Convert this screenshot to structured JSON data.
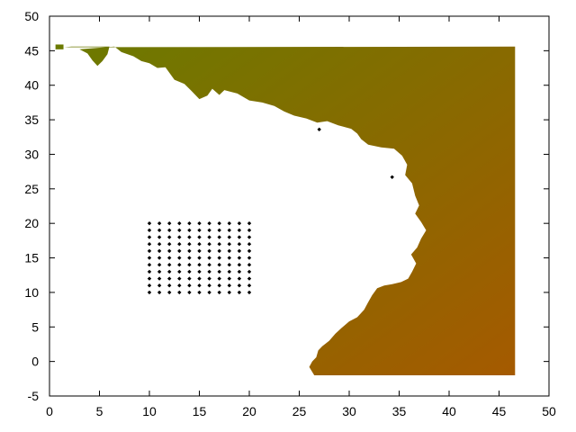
{
  "chart_data": {
    "type": "scatter",
    "title": "",
    "xlabel": "",
    "ylabel": "",
    "xlim": [
      0,
      50
    ],
    "ylim": [
      -5,
      50
    ],
    "x_ticks": [
      "0",
      "5",
      "10",
      "15",
      "20",
      "25",
      "30",
      "35",
      "40",
      "45",
      "50"
    ],
    "y_ticks": [
      "-5",
      "0",
      "5",
      "10",
      "15",
      "20",
      "25",
      "30",
      "35",
      "40",
      "45",
      "50"
    ],
    "grid": false,
    "legend": "none",
    "colors": {
      "field_left": "#6b7a00",
      "field_right": "#a55a00",
      "points": "#000000",
      "axis": "#000000"
    },
    "field_region": {
      "description_free": true,
      "boundary": [
        [
          0.8,
          45.5
        ],
        [
          1.5,
          45.5
        ],
        [
          2.2,
          45.6
        ],
        [
          6.0,
          45.6
        ],
        [
          5.8,
          44.5
        ],
        [
          5.3,
          43.5
        ],
        [
          4.8,
          42.8
        ],
        [
          4.3,
          43.6
        ],
        [
          3.8,
          44.6
        ],
        [
          3.0,
          45.2
        ],
        [
          6.5,
          45.6
        ],
        [
          7.2,
          44.8
        ],
        [
          8.4,
          44.2
        ],
        [
          9.2,
          43.5
        ],
        [
          10.0,
          43.2
        ],
        [
          10.8,
          42.5
        ],
        [
          11.6,
          42.6
        ],
        [
          12.5,
          40.8
        ],
        [
          13.5,
          40.2
        ],
        [
          14.2,
          39.2
        ],
        [
          15.0,
          38.0
        ],
        [
          15.8,
          38.5
        ],
        [
          16.3,
          39.5
        ],
        [
          17.0,
          38.6
        ],
        [
          17.5,
          39.3
        ],
        [
          18.8,
          38.8
        ],
        [
          20.0,
          37.8
        ],
        [
          21.3,
          37.5
        ],
        [
          22.5,
          37.0
        ],
        [
          23.5,
          36.2
        ],
        [
          24.5,
          35.6
        ],
        [
          25.7,
          35.2
        ],
        [
          26.8,
          34.6
        ],
        [
          27.8,
          34.8
        ],
        [
          28.9,
          34.2
        ],
        [
          30.2,
          33.7
        ],
        [
          30.8,
          33.0
        ],
        [
          31.2,
          32.2
        ],
        [
          31.9,
          31.4
        ],
        [
          33.2,
          31.0
        ],
        [
          34.5,
          30.8
        ],
        [
          35.3,
          29.8
        ],
        [
          35.8,
          28.5
        ],
        [
          35.6,
          27.0
        ],
        [
          36.3,
          25.8
        ],
        [
          36.6,
          24.0
        ],
        [
          37.0,
          22.6
        ],
        [
          36.6,
          21.4
        ],
        [
          37.2,
          20.2
        ],
        [
          37.7,
          19.0
        ],
        [
          37.2,
          17.8
        ],
        [
          36.8,
          16.5
        ],
        [
          36.2,
          15.5
        ],
        [
          36.7,
          14.2
        ],
        [
          36.3,
          13.0
        ],
        [
          35.9,
          12.0
        ],
        [
          35.2,
          11.5
        ],
        [
          34.3,
          11.2
        ],
        [
          33.5,
          11.0
        ],
        [
          32.8,
          10.6
        ],
        [
          32.3,
          9.6
        ],
        [
          31.9,
          8.6
        ],
        [
          31.5,
          7.5
        ],
        [
          30.8,
          6.4
        ],
        [
          30.0,
          5.8
        ],
        [
          29.2,
          4.8
        ],
        [
          28.6,
          4.0
        ],
        [
          28.0,
          3.0
        ],
        [
          27.3,
          2.2
        ],
        [
          26.9,
          1.6
        ],
        [
          26.7,
          0.6
        ],
        [
          26.3,
          0.0
        ],
        [
          26.0,
          -0.8
        ],
        [
          26.5,
          -2.0
        ],
        [
          46.6,
          -2.0
        ],
        [
          46.6,
          45.6
        ]
      ]
    },
    "series": [
      {
        "points": [
          [
            10,
            10
          ],
          [
            10,
            11
          ],
          [
            10,
            12
          ],
          [
            10,
            13
          ],
          [
            10,
            14
          ],
          [
            10,
            15
          ],
          [
            10,
            16
          ],
          [
            10,
            17
          ],
          [
            10,
            18
          ],
          [
            10,
            19
          ],
          [
            10,
            20
          ],
          [
            11,
            10
          ],
          [
            11,
            11
          ],
          [
            11,
            12
          ],
          [
            11,
            13
          ],
          [
            11,
            14
          ],
          [
            11,
            15
          ],
          [
            11,
            16
          ],
          [
            11,
            17
          ],
          [
            11,
            18
          ],
          [
            11,
            19
          ],
          [
            11,
            20
          ],
          [
            12,
            10
          ],
          [
            12,
            11
          ],
          [
            12,
            12
          ],
          [
            12,
            13
          ],
          [
            12,
            14
          ],
          [
            12,
            15
          ],
          [
            12,
            16
          ],
          [
            12,
            17
          ],
          [
            12,
            18
          ],
          [
            12,
            19
          ],
          [
            12,
            20
          ],
          [
            13,
            10
          ],
          [
            13,
            11
          ],
          [
            13,
            12
          ],
          [
            13,
            13
          ],
          [
            13,
            14
          ],
          [
            13,
            15
          ],
          [
            13,
            16
          ],
          [
            13,
            17
          ],
          [
            13,
            18
          ],
          [
            13,
            19
          ],
          [
            13,
            20
          ],
          [
            14,
            10
          ],
          [
            14,
            11
          ],
          [
            14,
            12
          ],
          [
            14,
            13
          ],
          [
            14,
            14
          ],
          [
            14,
            15
          ],
          [
            14,
            16
          ],
          [
            14,
            17
          ],
          [
            14,
            18
          ],
          [
            14,
            19
          ],
          [
            14,
            20
          ],
          [
            15,
            10
          ],
          [
            15,
            11
          ],
          [
            15,
            12
          ],
          [
            15,
            13
          ],
          [
            15,
            14
          ],
          [
            15,
            15
          ],
          [
            15,
            16
          ],
          [
            15,
            17
          ],
          [
            15,
            18
          ],
          [
            15,
            19
          ],
          [
            15,
            20
          ],
          [
            16,
            10
          ],
          [
            16,
            11
          ],
          [
            16,
            12
          ],
          [
            16,
            13
          ],
          [
            16,
            14
          ],
          [
            16,
            15
          ],
          [
            16,
            16
          ],
          [
            16,
            17
          ],
          [
            16,
            18
          ],
          [
            16,
            19
          ],
          [
            16,
            20
          ],
          [
            17,
            10
          ],
          [
            17,
            11
          ],
          [
            17,
            12
          ],
          [
            17,
            13
          ],
          [
            17,
            14
          ],
          [
            17,
            15
          ],
          [
            17,
            16
          ],
          [
            17,
            17
          ],
          [
            17,
            18
          ],
          [
            17,
            19
          ],
          [
            17,
            20
          ],
          [
            18,
            10
          ],
          [
            18,
            11
          ],
          [
            18,
            12
          ],
          [
            18,
            13
          ],
          [
            18,
            14
          ],
          [
            18,
            15
          ],
          [
            18,
            16
          ],
          [
            18,
            17
          ],
          [
            18,
            18
          ],
          [
            18,
            19
          ],
          [
            18,
            20
          ],
          [
            19,
            10
          ],
          [
            19,
            11
          ],
          [
            19,
            12
          ],
          [
            19,
            13
          ],
          [
            19,
            14
          ],
          [
            19,
            15
          ],
          [
            19,
            16
          ],
          [
            19,
            17
          ],
          [
            19,
            18
          ],
          [
            19,
            19
          ],
          [
            19,
            20
          ],
          [
            20,
            10
          ],
          [
            20,
            11
          ],
          [
            20,
            12
          ],
          [
            20,
            13
          ],
          [
            20,
            14
          ],
          [
            20,
            15
          ],
          [
            20,
            16
          ],
          [
            20,
            17
          ],
          [
            20,
            18
          ],
          [
            20,
            19
          ],
          [
            20,
            20
          ],
          [
            27,
            33.6
          ],
          [
            34.3,
            26.7
          ]
        ]
      }
    ]
  }
}
